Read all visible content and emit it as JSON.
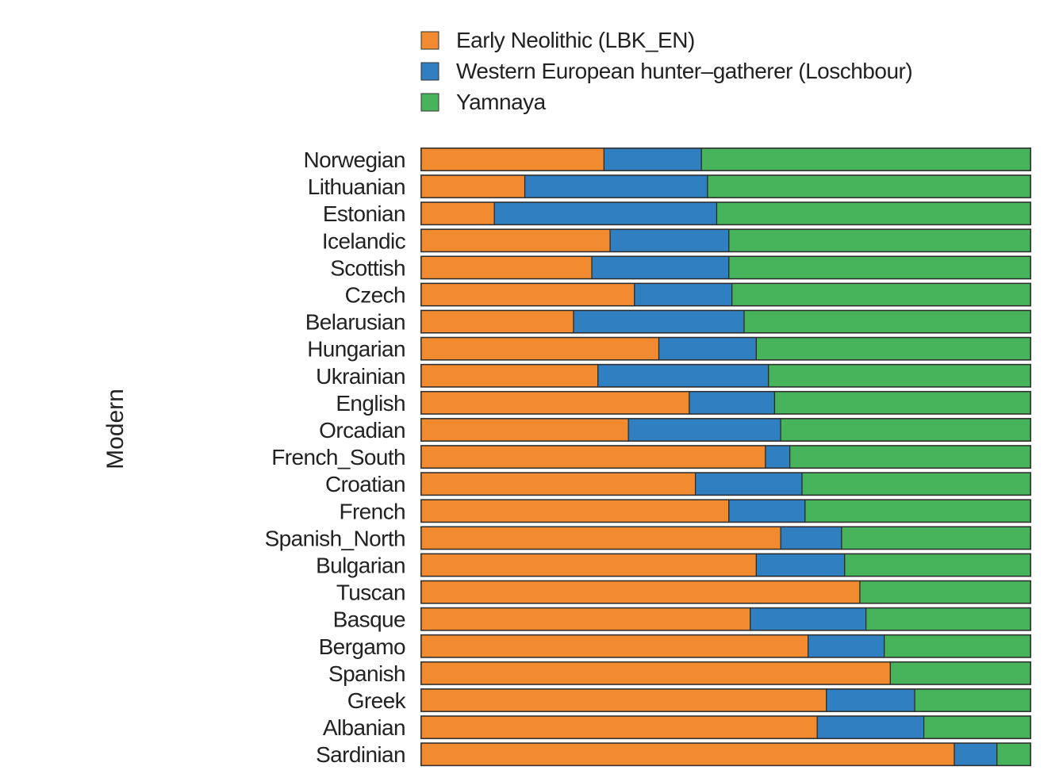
{
  "chart_data": {
    "type": "bar",
    "orientation": "horizontal",
    "stacked": true,
    "normalized": true,
    "ylabel": "Modern",
    "xlabel": "",
    "xlim": [
      0,
      1
    ],
    "grid": false,
    "legend_position": "top",
    "categories": [
      "Norwegian",
      "Lithuanian",
      "Estonian",
      "Icelandic",
      "Scottish",
      "Czech",
      "Belarusian",
      "Hungarian",
      "Ukrainian",
      "English",
      "Orcadian",
      "French_South",
      "Croatian",
      "French",
      "Spanish_North",
      "Bulgarian",
      "Tuscan",
      "Basque",
      "Bergamo",
      "Spanish",
      "Greek",
      "Albanian",
      "Sardinian"
    ],
    "series": [
      {
        "name": "Early Neolithic (LBK_EN)",
        "color": "#f28b2f",
        "values": [
          0.3,
          0.17,
          0.12,
          0.31,
          0.28,
          0.35,
          0.25,
          0.39,
          0.29,
          0.44,
          0.34,
          0.565,
          0.45,
          0.505,
          0.59,
          0.55,
          0.72,
          0.54,
          0.635,
          0.77,
          0.665,
          0.65,
          0.875
        ]
      },
      {
        "name": "Western European hunter–gatherer (Loschbour)",
        "color": "#2f7fc1",
        "values": [
          0.16,
          0.3,
          0.365,
          0.195,
          0.225,
          0.16,
          0.28,
          0.16,
          0.28,
          0.14,
          0.25,
          0.04,
          0.175,
          0.125,
          0.1,
          0.145,
          0.0,
          0.19,
          0.125,
          0.0,
          0.145,
          0.175,
          0.07
        ]
      },
      {
        "name": "Yamnaya",
        "color": "#47b35a",
        "values": [
          0.54,
          0.53,
          0.515,
          0.495,
          0.495,
          0.49,
          0.47,
          0.45,
          0.43,
          0.42,
          0.41,
          0.395,
          0.375,
          0.37,
          0.31,
          0.305,
          0.28,
          0.27,
          0.24,
          0.23,
          0.19,
          0.175,
          0.055
        ]
      }
    ]
  }
}
